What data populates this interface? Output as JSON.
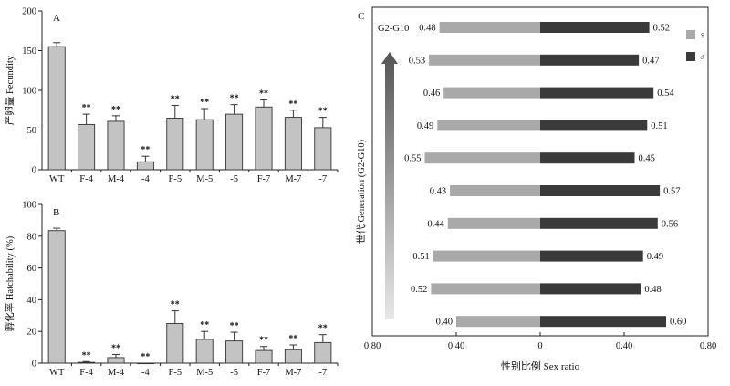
{
  "chart_data": [
    {
      "type": "bar",
      "panel_label": "A",
      "ylabel": "产卵量 Fecundity",
      "ylim": [
        0,
        200
      ],
      "yticks": [
        0,
        50,
        100,
        150,
        200
      ],
      "categories": [
        "WT",
        "F-4",
        "M-4",
        "-4",
        "F-5",
        "M-5",
        "-5",
        "F-7",
        "M-7",
        "-7"
      ],
      "values": [
        155,
        57,
        61,
        10,
        65,
        63,
        70,
        79,
        66,
        53
      ],
      "errors": [
        5,
        13,
        7,
        7,
        16,
        14,
        12,
        9,
        9,
        13
      ],
      "significance": [
        "",
        "**",
        "**",
        "**",
        "**",
        "**",
        "**",
        "**",
        "**",
        "**"
      ]
    },
    {
      "type": "bar",
      "panel_label": "B",
      "ylabel": "孵化率 Hatchability (%)",
      "ylim": [
        0,
        100
      ],
      "yticks": [
        0,
        20,
        40,
        60,
        80,
        100
      ],
      "categories": [
        "WT",
        "F-4",
        "M-4",
        "-4",
        "F-5",
        "M-5",
        "-5",
        "F-7",
        "M-7",
        "-7"
      ],
      "values": [
        83.5,
        0.5,
        3.5,
        0,
        25,
        15,
        14,
        8,
        8.5,
        13
      ],
      "errors": [
        1.5,
        0.5,
        2,
        0,
        8,
        5,
        5.5,
        2.5,
        3,
        5
      ],
      "significance": [
        "",
        "**",
        "**",
        "**",
        "**",
        "**",
        "**",
        "**",
        "**",
        "**"
      ]
    },
    {
      "type": "bar",
      "orientation": "horizontal-diverging",
      "panel_label": "C",
      "xlabel": "性别比例 Sex ratio",
      "ylabel": "世代 Generation (G2-G10)",
      "xlim": [
        -0.8,
        0.8
      ],
      "xticks": [
        -0.8,
        -0.4,
        0,
        0.4,
        0.8
      ],
      "xtick_labels": [
        "0.80",
        "0.40",
        "0",
        "0.40",
        "0.80"
      ],
      "top_row_label": "G2-G10",
      "legend_position": "top-right",
      "series": [
        {
          "name": "♀",
          "color": "#a9a9a9",
          "values": [
            0.48,
            0.53,
            0.46,
            0.49,
            0.55,
            0.43,
            0.44,
            0.51,
            0.52,
            0.4
          ]
        },
        {
          "name": "♂",
          "color": "#3a3a3a",
          "values": [
            0.52,
            0.47,
            0.54,
            0.51,
            0.45,
            0.57,
            0.56,
            0.49,
            0.48,
            0.6
          ]
        }
      ]
    }
  ]
}
